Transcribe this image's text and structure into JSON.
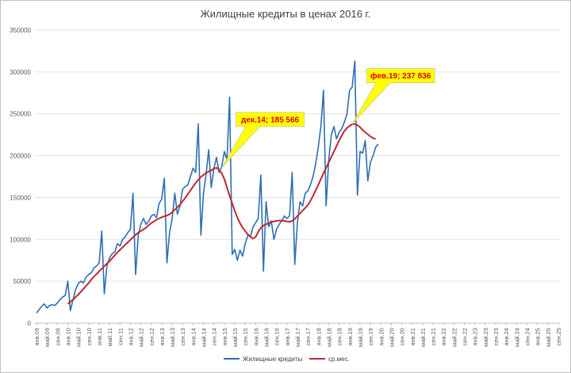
{
  "chart_data": {
    "type": "line",
    "title": "Жилищные кредиты в ценах 2016 г.",
    "ylim": [
      0,
      350000
    ],
    "yticks": [
      "0",
      "50000",
      "100000",
      "150000",
      "200000",
      "250000",
      "300000",
      "350000"
    ],
    "ytick_values": [
      0,
      50000,
      100000,
      150000,
      200000,
      250000,
      300000,
      350000
    ],
    "x_start": "янв.09",
    "x_ticks": [
      "янв.09",
      "май.09",
      "сен.09",
      "янв.10",
      "май.10",
      "сен.10",
      "янв.11",
      "май.11",
      "сен.11",
      "янв.12",
      "май.12",
      "сен.12",
      "янв.13",
      "май.13",
      "сен.13",
      "янв.14",
      "май.14",
      "сен.14",
      "янв.15",
      "май.15",
      "сен.15",
      "янв.16",
      "май.16",
      "сен.16",
      "янв.17",
      "май.17",
      "сен.17",
      "янв.18",
      "май.18",
      "сен.18",
      "янв.19",
      "май.19",
      "сен.19",
      "янв.20",
      "май.20",
      "сен.20",
      "янв.21",
      "май.21",
      "сен.21",
      "янв.22",
      "май.22",
      "сен.22",
      "янв.23",
      "май.23",
      "сен.23",
      "янв.24",
      "май.24",
      "сен.24",
      "янв.25",
      "май.25",
      "сен.25"
    ],
    "grid": true,
    "legend_position": "bottom",
    "series": [
      {
        "name": "Жилищные кредиты",
        "color": "#2e6eb5",
        "values": [
          12000,
          16000,
          20000,
          23000,
          18000,
          21000,
          22000,
          21000,
          24000,
          28000,
          31000,
          33000,
          50000,
          15000,
          28000,
          40000,
          47000,
          50000,
          48000,
          55000,
          58000,
          60000,
          66000,
          68000,
          72000,
          110000,
          35000,
          68000,
          78000,
          83000,
          85000,
          95000,
          92000,
          100000,
          103000,
          108000,
          112000,
          155000,
          58000,
          105000,
          118000,
          125000,
          118000,
          122000,
          128000,
          130000,
          126000,
          143000,
          148000,
          173000,
          72000,
          108000,
          125000,
          155000,
          130000,
          140000,
          160000,
          163000,
          165000,
          175000,
          185000,
          180000,
          238000,
          105000,
          155000,
          178000,
          207000,
          162000,
          185000,
          198000,
          180000,
          187000,
          205000,
          195000,
          270000,
          82000,
          88000,
          75000,
          87000,
          80000,
          95000,
          105000,
          103000,
          115000,
          120000,
          125000,
          177000,
          62000,
          145000,
          115000,
          122000,
          100000,
          112000,
          118000,
          122000,
          128000,
          125000,
          128000,
          180000,
          70000,
          120000,
          145000,
          140000,
          155000,
          158000,
          165000,
          175000,
          190000,
          210000,
          235000,
          278000,
          140000,
          195000,
          225000,
          235000,
          220000,
          228000,
          232000,
          240000,
          250000,
          278000,
          282000,
          313000,
          153000,
          205000,
          203000,
          218000,
          170000,
          192000,
          200000,
          210000,
          214000
        ]
      },
      {
        "name": "ср.мес.",
        "color": "#c0282d",
        "start_index": 12,
        "values": [
          23000,
          25500,
          28000,
          31000,
          34000,
          37500,
          41000,
          44500,
          48000,
          52000,
          55500,
          58500,
          62000,
          65000,
          68000,
          71000,
          74000,
          77500,
          81000,
          84500,
          87500,
          90500,
          93500,
          96500,
          99500,
          102500,
          105500,
          108000,
          110000,
          112000,
          114000,
          117000,
          119500,
          121500,
          123500,
          125000,
          126500,
          127500,
          128500,
          130000,
          132500,
          135500,
          138500,
          141500,
          145500,
          149500,
          154000,
          158500,
          163000,
          167500,
          171000,
          174500,
          177000,
          179500,
          181000,
          182500,
          184500,
          185566,
          183000,
          179000,
          172000,
          162000,
          152000,
          143000,
          134000,
          126000,
          119500,
          114000,
          110000,
          106000,
          103000,
          101000,
          103000,
          109000,
          114000,
          116500,
          118000,
          119500,
          121000,
          121500,
          122000,
          122500,
          122500,
          122000,
          121500,
          121000,
          122000,
          124500,
          128000,
          131000,
          134500,
          137500,
          141000,
          146000,
          152000,
          158500,
          165000,
          172000,
          179000,
          185500,
          192000,
          198500,
          205000,
          211500,
          218000,
          224000,
          229500,
          233000,
          235500,
          237500,
          237836,
          236500,
          234000,
          230500,
          228000,
          225500,
          223000,
          221000,
          220000
        ]
      }
    ],
    "annotations": [
      {
        "label": "дек.14; 185 566",
        "index": 71,
        "value": 185566
      },
      {
        "label": "фев.19; 237 836",
        "index": 121,
        "value": 237836
      }
    ],
    "annotation_fill": "#ffff00",
    "annotation_text_color": "#e00000"
  }
}
